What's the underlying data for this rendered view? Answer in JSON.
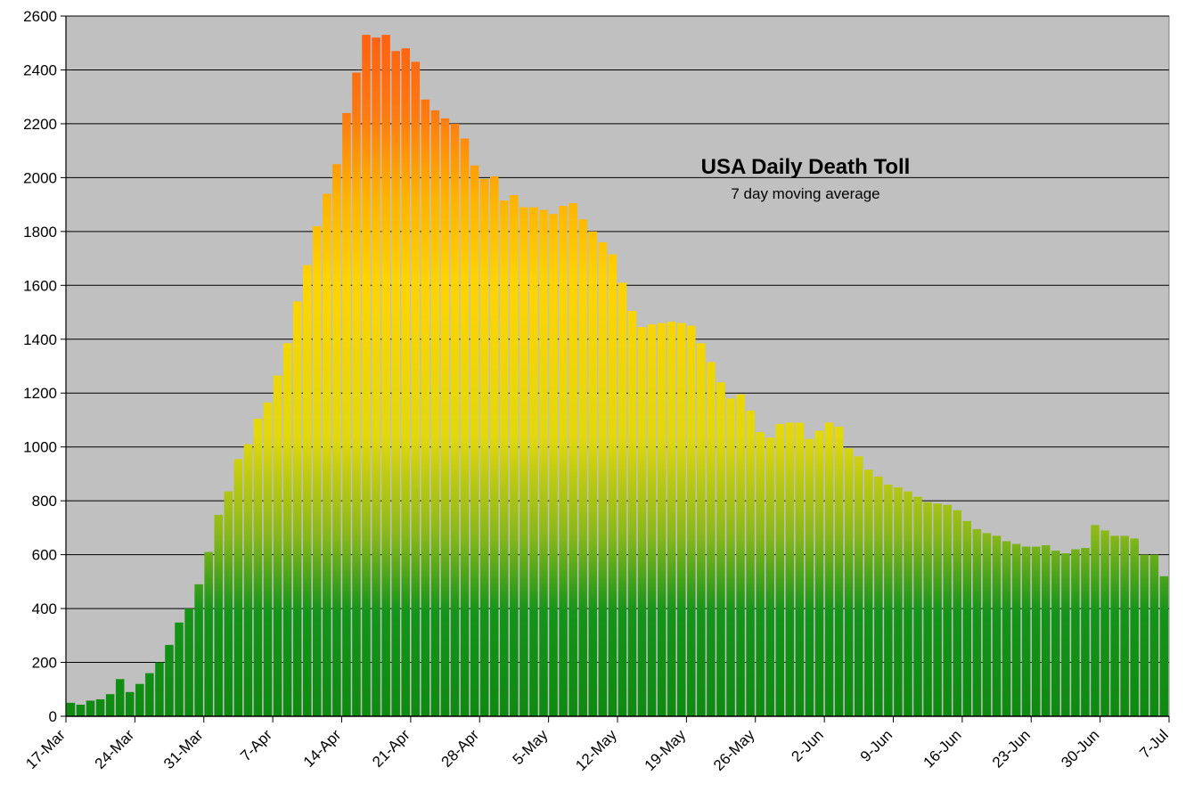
{
  "chart_data": {
    "type": "bar",
    "title": "USA Daily Death Toll",
    "subtitle": "7 day moving average",
    "xlabel": "",
    "ylabel": "",
    "ylim": [
      0,
      2600
    ],
    "ytick_step": 200,
    "grid": true,
    "x_tick_labels": [
      "17-Mar",
      "24-Mar",
      "31-Mar",
      "7-Apr",
      "14-Apr",
      "21-Apr",
      "28-Apr",
      "5-May",
      "12-May",
      "19-May",
      "26-May",
      "2-Jun",
      "9-Jun",
      "16-Jun",
      "23-Jun",
      "30-Jun",
      "7-Jul"
    ],
    "start_date": "17-Mar",
    "end_date": "7-Jul",
    "values": [
      50,
      43,
      58,
      63,
      82,
      138,
      90,
      120,
      160,
      200,
      265,
      348,
      400,
      490,
      610,
      748,
      835,
      955,
      1010,
      1105,
      1165,
      1265,
      1385,
      1540,
      1675,
      1820,
      1940,
      2050,
      2240,
      2390,
      2530,
      2520,
      2530,
      2470,
      2480,
      2430,
      2290,
      2250,
      2220,
      2200,
      2145,
      2045,
      1995,
      2005,
      1915,
      1935,
      1890,
      1890,
      1880,
      1865,
      1895,
      1905,
      1845,
      1800,
      1760,
      1715,
      1610,
      1505,
      1445,
      1455,
      1460,
      1465,
      1460,
      1450,
      1385,
      1315,
      1240,
      1180,
      1195,
      1135,
      1055,
      1035,
      1085,
      1090,
      1090,
      1030,
      1060,
      1090,
      1075,
      995,
      965,
      915,
      890,
      860,
      850,
      835,
      815,
      795,
      790,
      785,
      765,
      725,
      695,
      680,
      670,
      650,
      640,
      630,
      630,
      635,
      615,
      605,
      620,
      625,
      710,
      690,
      670,
      670,
      660,
      600,
      600,
      520
    ]
  }
}
